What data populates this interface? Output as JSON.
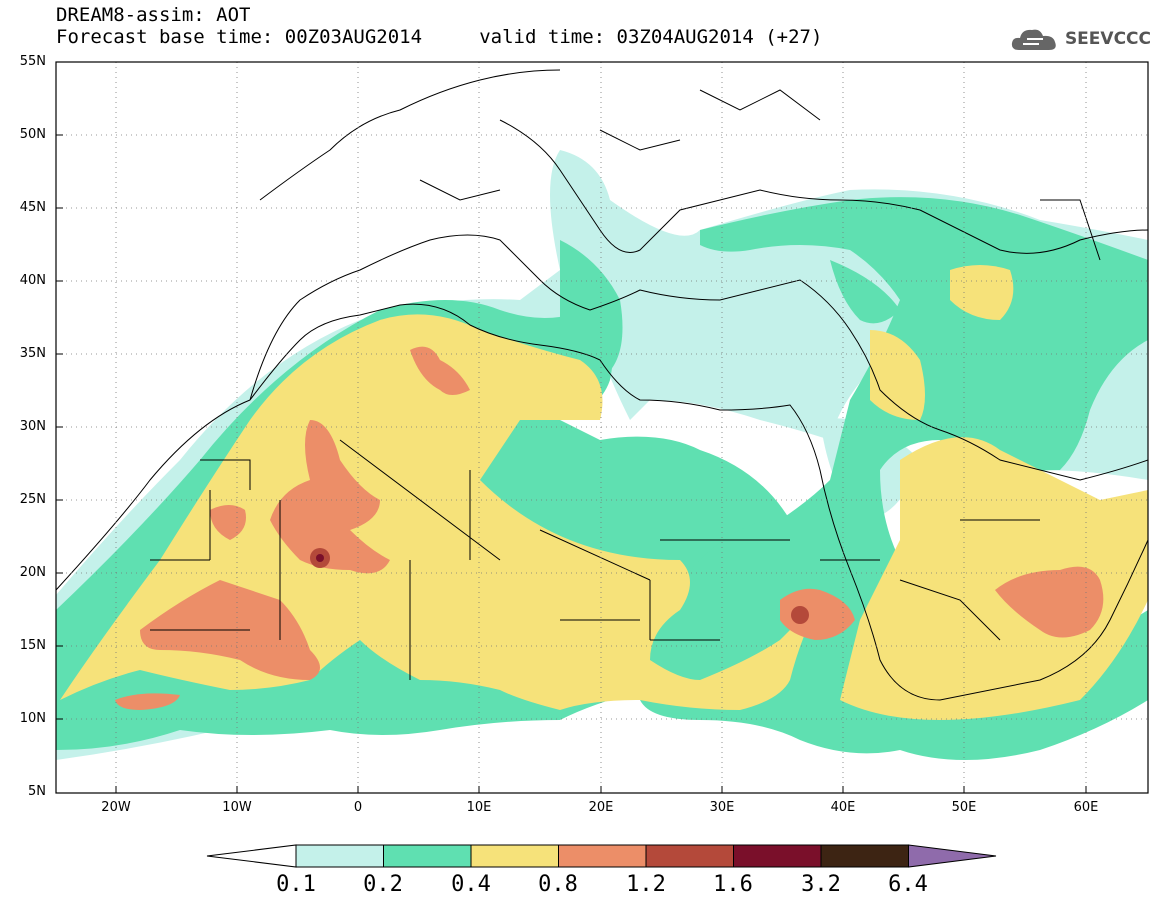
{
  "header": {
    "title_line1": "DREAM8-assim: AOT",
    "title_line2": "Forecast base time: 00Z03AUG2014     valid time: 03Z04AUG2014 (+27)",
    "logo_text": "SEEVCCC"
  },
  "axes": {
    "lat_labels": [
      "55N",
      "50N",
      "45N",
      "40N",
      "35N",
      "30N",
      "25N",
      "20N",
      "15N",
      "10N",
      "5N"
    ],
    "lon_labels": [
      "20W",
      "10W",
      "0",
      "10E",
      "20E",
      "30E",
      "40E",
      "50E",
      "60E"
    ]
  },
  "colorbar": {
    "labels": [
      "0.1",
      "0.2",
      "0.4",
      "0.8",
      "1.2",
      "1.6",
      "3.2",
      "6.4"
    ],
    "colors": [
      "#ffffff",
      "#c4f1ea",
      "#5fe0b1",
      "#f6e27a",
      "#ec8e68",
      "#b4493a",
      "#7a0f2a",
      "#3d2413",
      "#8f6bab"
    ]
  },
  "colors": {
    "c1": "#c4f1ea",
    "c2": "#5fe0b1",
    "c3": "#f6e27a",
    "c4": "#ec8e68",
    "c5": "#b4493a",
    "c6": "#7a0f2a"
  }
}
